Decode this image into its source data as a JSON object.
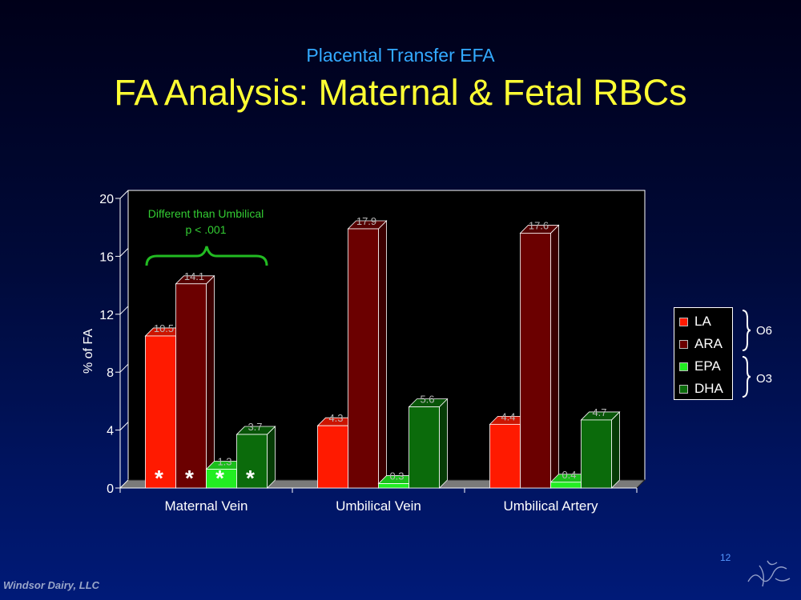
{
  "slide": {
    "subtitle": "Placental Transfer EFA",
    "title": "FA Analysis: Maternal & Fetal RBCs",
    "footer": "Windsor Dairy, LLC",
    "page_number": "12"
  },
  "chart_data": {
    "type": "bar",
    "ylabel": "% of FA",
    "ylim": [
      0,
      20
    ],
    "yticks": [
      0,
      4,
      8,
      12,
      16,
      20
    ],
    "categories": [
      "Maternal Vein",
      "Umbilical Vein",
      "Umbilical Artery"
    ],
    "series": [
      {
        "name": "LA",
        "color": "#ff1a00",
        "values": [
          10.5,
          4.3,
          4.4
        ],
        "labels": [
          "10.5",
          "4.3",
          "4.4"
        ]
      },
      {
        "name": "ARA",
        "color": "#6b0000",
        "values": [
          14.1,
          17.9,
          17.6
        ],
        "labels": [
          "14.1",
          "17.9",
          "17.6"
        ]
      },
      {
        "name": "EPA",
        "color": "#22ee22",
        "values": [
          1.3,
          0.3,
          0.4
        ],
        "labels": [
          "1.3",
          "0.3",
          "0.4"
        ]
      },
      {
        "name": "DHA",
        "color": "#0b6b0b",
        "values": [
          3.7,
          5.6,
          4.7
        ],
        "labels": [
          "3.7",
          "5.6",
          "4.7"
        ]
      }
    ],
    "annotation": {
      "line1": "Different  than Umbilical",
      "line2": "p < .001",
      "marker": "*"
    },
    "legend": {
      "placement": "right",
      "groups": [
        {
          "label": "O6",
          "series": [
            "LA",
            "ARA"
          ]
        },
        {
          "label": "O3",
          "series": [
            "EPA",
            "DHA"
          ]
        }
      ]
    }
  }
}
